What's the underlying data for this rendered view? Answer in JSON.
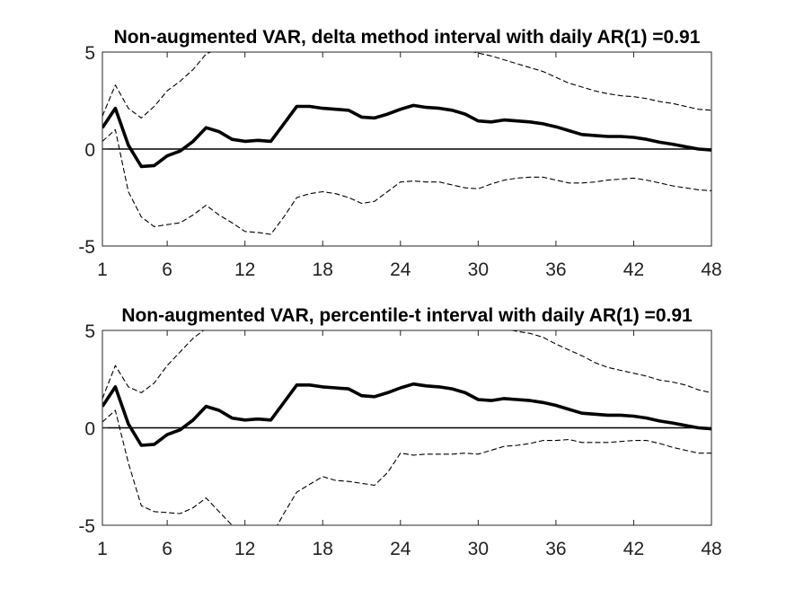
{
  "chart_data": [
    {
      "type": "line",
      "title": "Non-augmented VAR, delta method interval with daily AR(1) =0.91",
      "xlim": [
        1,
        48
      ],
      "ylim": [
        -5,
        5
      ],
      "xticks": [
        "1",
        "6",
        "12",
        "18",
        "24",
        "30",
        "36",
        "42",
        "48"
      ],
      "yticks": [
        "5",
        "0",
        "-5"
      ],
      "x": [
        1,
        2,
        3,
        4,
        5,
        6,
        7,
        8,
        9,
        10,
        11,
        12,
        13,
        14,
        15,
        16,
        17,
        18,
        19,
        20,
        21,
        22,
        23,
        24,
        25,
        26,
        27,
        28,
        29,
        30,
        31,
        32,
        33,
        34,
        35,
        36,
        37,
        38,
        39,
        40,
        41,
        42,
        43,
        44,
        45,
        46,
        47,
        48
      ],
      "series": [
        {
          "role": "estimate",
          "values": [
            1.1,
            2.1,
            0.2,
            -0.9,
            -0.85,
            -0.35,
            -0.1,
            0.4,
            1.1,
            0.9,
            0.5,
            0.4,
            0.45,
            0.4,
            1.3,
            2.2,
            2.2,
            2.1,
            2.05,
            2.0,
            1.65,
            1.6,
            1.8,
            2.05,
            2.25,
            2.15,
            2.1,
            2.0,
            1.8,
            1.45,
            1.4,
            1.5,
            1.45,
            1.4,
            1.3,
            1.15,
            0.95,
            0.75,
            0.7,
            0.65,
            0.65,
            0.6,
            0.5,
            0.35,
            0.25,
            0.12,
            0.0,
            -0.05
          ]
        },
        {
          "role": "upper-bound",
          "values": [
            1.7,
            3.3,
            2.1,
            1.6,
            2.2,
            3.0,
            3.5,
            4.1,
            4.9,
            5.2,
            5.05,
            5.0,
            5.1,
            5.3,
            5.5,
            5.6,
            5.6,
            5.6,
            5.6,
            5.55,
            5.5,
            5.5,
            5.5,
            5.5,
            5.5,
            5.4,
            5.3,
            5.2,
            5.1,
            4.95,
            4.8,
            4.6,
            4.4,
            4.2,
            4.0,
            3.7,
            3.4,
            3.2,
            3.0,
            2.85,
            2.75,
            2.7,
            2.6,
            2.45,
            2.35,
            2.2,
            2.05,
            2.0
          ]
        },
        {
          "role": "lower-bound",
          "values": [
            0.4,
            1.0,
            -2.2,
            -3.5,
            -4.0,
            -3.9,
            -3.8,
            -3.4,
            -2.9,
            -3.4,
            -3.8,
            -4.25,
            -4.3,
            -4.4,
            -3.5,
            -2.5,
            -2.3,
            -2.2,
            -2.3,
            -2.5,
            -2.8,
            -2.7,
            -2.2,
            -1.7,
            -1.65,
            -1.7,
            -1.7,
            -1.85,
            -2.0,
            -2.05,
            -1.8,
            -1.6,
            -1.5,
            -1.45,
            -1.45,
            -1.6,
            -1.75,
            -1.75,
            -1.7,
            -1.6,
            -1.55,
            -1.5,
            -1.6,
            -1.75,
            -1.9,
            -2.0,
            -2.1,
            -2.15
          ]
        }
      ]
    },
    {
      "type": "line",
      "title": "Non-augmented VAR, percentile-t interval with daily AR(1) =0.91",
      "xlim": [
        1,
        48
      ],
      "ylim": [
        -5,
        5
      ],
      "xticks": [
        "1",
        "6",
        "12",
        "18",
        "24",
        "30",
        "36",
        "42",
        "48"
      ],
      "yticks": [
        "5",
        "0",
        "-5"
      ],
      "x": [
        1,
        2,
        3,
        4,
        5,
        6,
        7,
        8,
        9,
        10,
        11,
        12,
        13,
        14,
        15,
        16,
        17,
        18,
        19,
        20,
        21,
        22,
        23,
        24,
        25,
        26,
        27,
        28,
        29,
        30,
        31,
        32,
        33,
        34,
        35,
        36,
        37,
        38,
        39,
        40,
        41,
        42,
        43,
        44,
        45,
        46,
        47,
        48
      ],
      "series": [
        {
          "role": "estimate",
          "values": [
            1.1,
            2.1,
            0.2,
            -0.9,
            -0.85,
            -0.35,
            -0.1,
            0.4,
            1.1,
            0.9,
            0.5,
            0.4,
            0.45,
            0.4,
            1.3,
            2.2,
            2.2,
            2.1,
            2.05,
            2.0,
            1.65,
            1.6,
            1.8,
            2.05,
            2.25,
            2.15,
            2.1,
            2.0,
            1.8,
            1.45,
            1.4,
            1.5,
            1.45,
            1.4,
            1.3,
            1.15,
            0.95,
            0.75,
            0.7,
            0.65,
            0.65,
            0.6,
            0.5,
            0.35,
            0.25,
            0.12,
            0.0,
            -0.05
          ]
        },
        {
          "role": "upper-bound",
          "values": [
            1.5,
            3.2,
            2.1,
            1.8,
            2.3,
            3.2,
            3.9,
            4.6,
            5.1,
            5.5,
            5.7,
            5.8,
            5.8,
            5.8,
            5.8,
            5.8,
            5.8,
            5.8,
            5.8,
            5.8,
            5.8,
            5.8,
            5.8,
            5.8,
            5.8,
            5.8,
            5.8,
            5.7,
            5.6,
            5.5,
            5.3,
            5.1,
            4.95,
            4.85,
            4.65,
            4.3,
            4.0,
            3.7,
            3.35,
            3.1,
            2.95,
            2.8,
            2.65,
            2.45,
            2.35,
            2.2,
            1.95,
            1.8
          ]
        },
        {
          "role": "lower-bound",
          "values": [
            0.3,
            0.9,
            -1.8,
            -4.0,
            -4.3,
            -4.35,
            -4.4,
            -4.1,
            -3.6,
            -4.3,
            -5.0,
            -5.3,
            -5.5,
            -5.6,
            -4.4,
            -3.3,
            -2.9,
            -2.5,
            -2.7,
            -2.75,
            -2.85,
            -2.95,
            -2.3,
            -1.3,
            -1.4,
            -1.35,
            -1.35,
            -1.35,
            -1.3,
            -1.35,
            -1.15,
            -0.95,
            -0.9,
            -0.8,
            -0.65,
            -0.65,
            -0.6,
            -0.75,
            -0.75,
            -0.75,
            -0.7,
            -0.65,
            -0.65,
            -0.8,
            -1.0,
            -1.15,
            -1.3,
            -1.3
          ]
        }
      ]
    }
  ]
}
